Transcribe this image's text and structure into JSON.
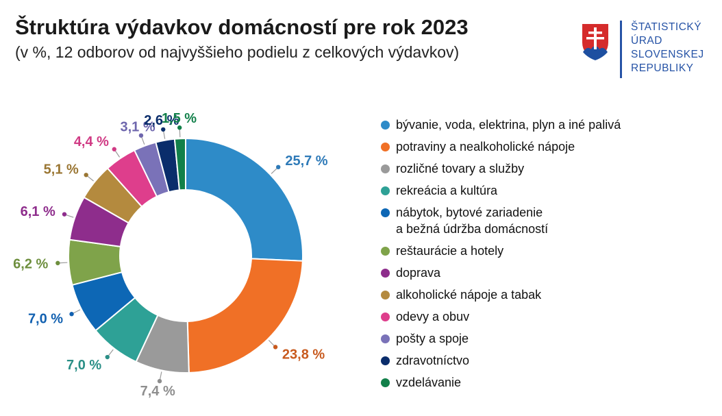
{
  "title": "Štruktúra výdavkov domácností pre rok 2023",
  "subtitle": "(v %, 12 odborov od najvyššieho podielu z celkových výdavkov)",
  "logo": {
    "lines": [
      "ŠTATISTICKÝ",
      "ÚRAD",
      "SLOVENSKEJ",
      "REPUBLIKY"
    ]
  },
  "chart_data": {
    "type": "pie",
    "variant": "donut",
    "legend_position": "right",
    "series": [
      {
        "name": "bývanie, voda, elektrina, plyn a iné palivá",
        "value": 25.7,
        "label": "25,7 %",
        "color": "#2e8bc8",
        "label_color": "#2e7ab8"
      },
      {
        "name": "potraviny a nealkoholické nápoje",
        "value": 23.8,
        "label": "23,8 %",
        "color": "#f07026",
        "label_color": "#c85a1e"
      },
      {
        "name": "rozličné tovary a služby",
        "value": 7.4,
        "label": "7,4 %",
        "color": "#9a9a9a",
        "label_color": "#8e8e8e"
      },
      {
        "name": "rekreácia a kultúra",
        "value": 7.0,
        "label": "7,0 %",
        "color": "#2ea196",
        "label_color": "#2a8f87"
      },
      {
        "name": "nábytok, bytové zariadenie\na bežná údržba domácností",
        "value": 7.0,
        "label": "7,0 %",
        "color": "#0d67b5",
        "label_color": "#1160b0"
      },
      {
        "name": "reštaurácie a hotely",
        "value": 6.2,
        "label": "6,2 %",
        "color": "#7fa34a",
        "label_color": "#6e8f3e"
      },
      {
        "name": "doprava",
        "value": 6.1,
        "label": "6,1 %",
        "color": "#8e2d8c",
        "label_color": "#8e2d8c"
      },
      {
        "name": "alkoholické nápoje a tabak",
        "value": 5.1,
        "label": "5,1 %",
        "color": "#b48a3e",
        "label_color": "#9a7633"
      },
      {
        "name": "odevy a obuv",
        "value": 4.4,
        "label": "4,4 %",
        "color": "#de3e8c",
        "label_color": "#d03a84"
      },
      {
        "name": "pošty a spoje",
        "value": 3.1,
        "label": "3,1 %",
        "color": "#7a72b8",
        "label_color": "#6e66ad"
      },
      {
        "name": "zdravotníctvo",
        "value": 2.6,
        "label": "2,6 %",
        "color": "#0a2d6b",
        "label_color": "#0a2d6b"
      },
      {
        "name": "vzdelávanie",
        "value": 1.5,
        "label": "1,5 %",
        "color": "#12804a",
        "label_color": "#12804a"
      }
    ]
  }
}
